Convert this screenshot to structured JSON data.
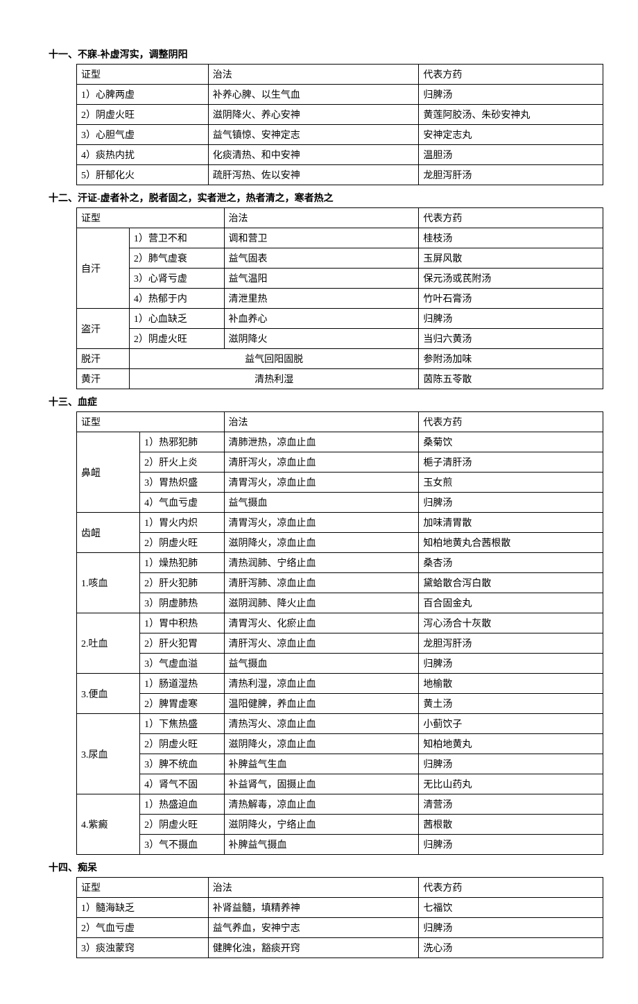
{
  "s11": {
    "title": "十一、不寐-补虚泻实，调整阴阳",
    "cols": [
      "证型",
      "治法",
      "代表方药"
    ],
    "widths": [
      "25%",
      "40%",
      "35%"
    ],
    "rows": [
      [
        "1）心脾两虚",
        "补养心脾、以生气血",
        "归脾汤"
      ],
      [
        "2）阴虚火旺",
        "滋阴降火、养心安神",
        "黄莲阿胶汤、朱砂安神丸"
      ],
      [
        "3）心胆气虚",
        "益气镇惊、安神定志",
        "安神定志丸"
      ],
      [
        "4）痰热内扰",
        "化痰清热、和中安神",
        "温胆汤"
      ],
      [
        "5）肝郁化火",
        "疏肝泻热、佐以安神",
        "龙胆泻肝汤"
      ]
    ]
  },
  "s12": {
    "title": "十二、汗证-虚者补之，脱者固之，实者泄之，热者清之，寒者热之",
    "cols": [
      "证型",
      "治法",
      "代表方药"
    ],
    "widths": [
      "10%",
      "18%",
      "37%",
      "35%"
    ],
    "groups": [
      {
        "cat": "自汗",
        "rows": [
          [
            "1）营卫不和",
            "调和营卫",
            "桂枝汤"
          ],
          [
            "2）肺气虚衰",
            "益气固表",
            "玉屏风散"
          ],
          [
            "3）心肾亏虚",
            "益气温阳",
            "保元汤或芪附汤"
          ],
          [
            "4）热郁于内",
            "清泄里热",
            "竹叶石膏汤"
          ]
        ]
      },
      {
        "cat": "盗汗",
        "rows": [
          [
            "1）心血缺乏",
            "补血养心",
            "归脾汤"
          ],
          [
            "2）阴虚火旺",
            "滋阴降火",
            "当归六黄汤"
          ]
        ]
      },
      {
        "cat": "脱汗",
        "rows": [
          [
            "",
            "益气回阳固脱",
            "参附汤加味"
          ]
        ],
        "merge": true
      },
      {
        "cat": "黄汗",
        "rows": [
          [
            "",
            "清热利湿",
            "茵陈五苓散"
          ]
        ],
        "merge": true
      }
    ]
  },
  "s13": {
    "title": "十三、血症",
    "cols": [
      "证型",
      "治法",
      "代表方药"
    ],
    "widths": [
      "12%",
      "16%",
      "37%",
      "35%"
    ],
    "groups": [
      {
        "cat": "鼻衄",
        "rows": [
          [
            "1）热邪犯肺",
            "清肺泄热，凉血止血",
            "桑菊饮"
          ],
          [
            "2）肝火上炎",
            "清肝泻火，凉血止血",
            "梔子清肝汤"
          ],
          [
            "3）胃热炽盛",
            "清胃泻火，凉血止血",
            "玉女煎"
          ],
          [
            "4）气血亏虚",
            "益气摄血",
            "归脾汤"
          ]
        ]
      },
      {
        "cat": "齿衄",
        "rows": [
          [
            "1）胃火内炽",
            "清胃泻火，凉血止血",
            "加味清胃散"
          ],
          [
            "2）阴虚火旺",
            "滋阴降火，凉血止血",
            "知柏地黄丸合茜根散"
          ]
        ]
      },
      {
        "cat": "1.咳血",
        "rows": [
          [
            "1）燥热犯肺",
            "清热润肺、宁络止血",
            "桑杏汤"
          ],
          [
            "2）肝火犯肺",
            "清肝泻肺、凉血止血",
            "黛蛤散合泻白散"
          ],
          [
            "3）阴虚肺热",
            "滋阴润肺、降火止血",
            "百合固金丸"
          ]
        ]
      },
      {
        "cat": "2.吐血",
        "rows": [
          [
            "1）胃中积热",
            "清胃泻火、化瘀止血",
            "泻心汤合十灰散"
          ],
          [
            "2）肝火犯胃",
            "清肝泻火、凉血止血",
            "龙胆泻肝汤"
          ],
          [
            "3）气虚血溢",
            "益气摄血",
            "归脾汤"
          ]
        ]
      },
      {
        "cat": "3.便血",
        "rows": [
          [
            "1）肠道湿热",
            "清热利湿，凉血止血",
            "地榆散"
          ],
          [
            "2）脾胃虚寒",
            "温阳健脾，养血止血",
            "黄土汤"
          ]
        ]
      },
      {
        "cat": "3.尿血",
        "rows": [
          [
            "1）下焦热盛",
            "清热泻火、凉血止血",
            "小蓟饮子"
          ],
          [
            "2）阴虚火旺",
            "滋阴降火，凉血止血",
            "知柏地黄丸"
          ],
          [
            "3）脾不统血",
            "补脾益气生血",
            "归脾汤"
          ],
          [
            "4）肾气不固",
            "补益肾气，固摄止血",
            "无比山药丸"
          ]
        ]
      },
      {
        "cat": "4.紫癜",
        "rows": [
          [
            "1）热盛迫血",
            "清热解毒，凉血止血",
            "清营汤"
          ],
          [
            "2）阴虚火旺",
            "滋阴降火，宁络止血",
            "茜根散"
          ],
          [
            "3）气不摄血",
            "补脾益气摄血",
            "归脾汤"
          ]
        ]
      }
    ]
  },
  "s14": {
    "title": "十四、痴呆",
    "cols": [
      "证型",
      "治法",
      "代表方药"
    ],
    "widths": [
      "25%",
      "40%",
      "35%"
    ],
    "rows": [
      [
        "1）髓海缺乏",
        "补肾益髓，填精养神",
        "七福饮"
      ],
      [
        "2）气血亏虚",
        "益气养血，安神宁志",
        "归脾汤"
      ],
      [
        "3）痰浊蒙窍",
        "健脾化浊，豁痰开窍",
        "洗心汤"
      ]
    ]
  }
}
